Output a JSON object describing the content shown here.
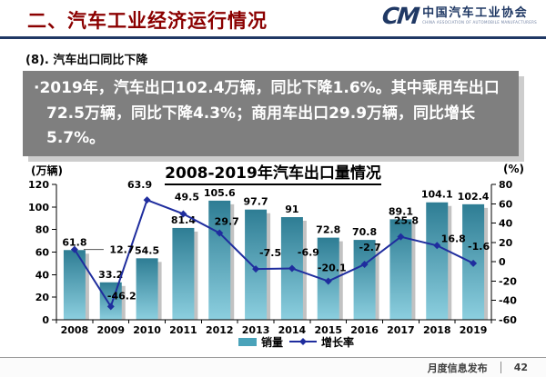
{
  "header": {
    "title": "二、汽车工业经济运行情况",
    "logo": {
      "mark": "CM",
      "org_cn": "中国汽车工业协会",
      "org_en": "CHINA ASSOCIATION OF AUTOMOBILE MANUFACTURERS"
    }
  },
  "subtitle": "(8). 汽车出口同比下降",
  "summary": {
    "bullet": "·",
    "text": "2019年，汽车出口102.4万辆，同比下降1.6%。其中乘用车出口72.5万辆，同比下降4.3%；商用车出口29.9万辆，同比增长5.7%。"
  },
  "chart_data": {
    "type": "bar",
    "title": "2008-2019年汽车出口量情况",
    "left_axis_unit": "(万辆)",
    "right_axis_unit": "(%)",
    "categories": [
      "2008",
      "2009",
      "2010",
      "2011",
      "2012",
      "2013",
      "2014",
      "2015",
      "2016",
      "2017",
      "2018",
      "2019"
    ],
    "series": [
      {
        "name": "销量",
        "type": "bar",
        "axis": "left",
        "values": [
          61.8,
          33.2,
          54.5,
          81.4,
          105.6,
          97.7,
          91,
          72.8,
          70.8,
          89.1,
          104.1,
          102.4
        ],
        "labels": [
          "61.8",
          "33.2",
          "54.5",
          "81.4",
          "105.6",
          "97.7",
          "91",
          "72.8",
          "70.8",
          "89.1",
          "104.1",
          "102.4"
        ]
      },
      {
        "name": "增长率",
        "type": "line",
        "axis": "right",
        "values": [
          12.7,
          -46.2,
          63.9,
          49.5,
          29.7,
          -7.5,
          -6.9,
          -20.1,
          -2.7,
          25.8,
          16.8,
          -1.6
        ],
        "labels": [
          "12.7",
          "-46.2",
          "63.9",
          "49.5",
          "29.7",
          "-7.5",
          "-6.9",
          "-20.1",
          "-2.7",
          "25.8",
          "16.8",
          "-1.6"
        ]
      }
    ],
    "left_axis": {
      "min": 0,
      "max": 120,
      "step": 20
    },
    "right_axis": {
      "min": -60,
      "max": 80,
      "step": 20
    },
    "legend_position": "bottom",
    "grid": false,
    "colors": {
      "bar_top": "#2E7D94",
      "bar_bottom": "#8CCFDF",
      "bar_legend": "#4AA3BA",
      "bar_shadow": "#c2c2c2",
      "line": "#1F2D9E",
      "axis": "#000000"
    }
  },
  "footer": {
    "label": "月度信息发布",
    "page": "42"
  }
}
